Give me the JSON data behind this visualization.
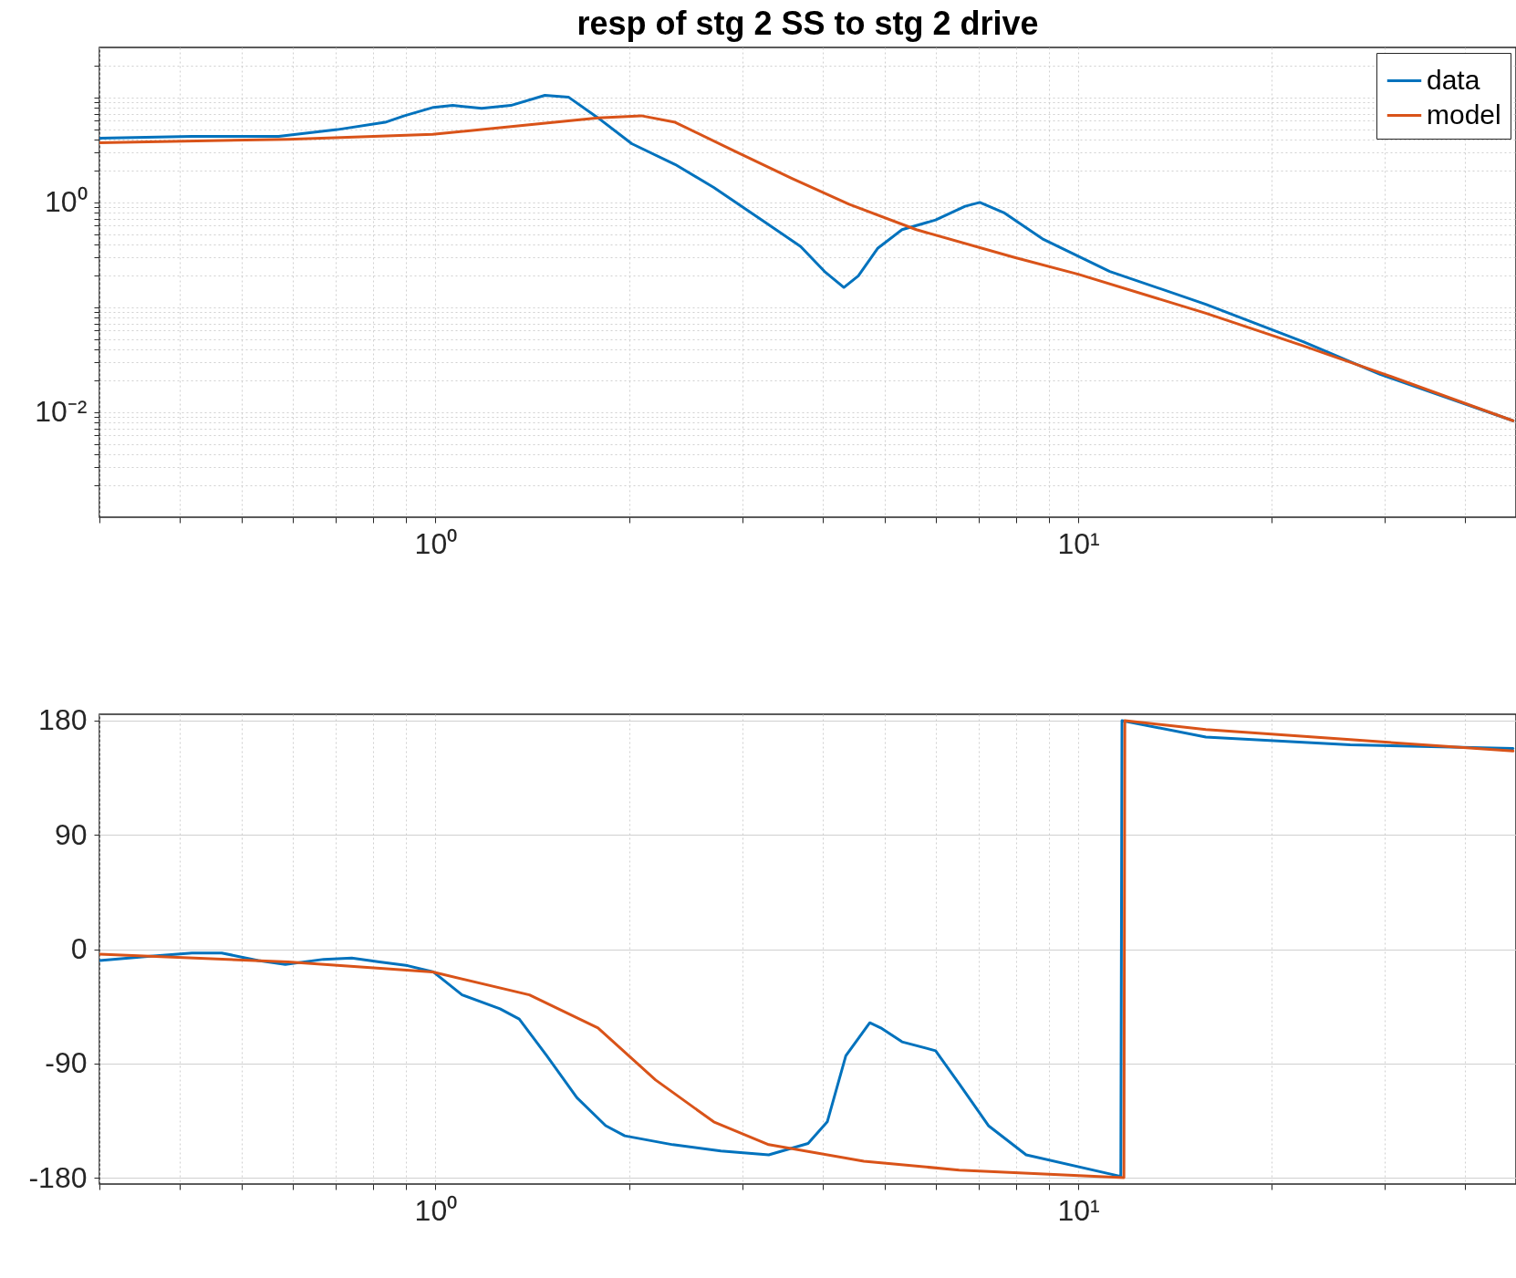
{
  "chart_data": [
    {
      "type": "line",
      "title": "resp of stg 2 SS to stg 2 drive",
      "log": "xy",
      "grid": true,
      "legend": "top right",
      "xlim": [
        0.3,
        48
      ],
      "ylim": [
        0.001,
        30
      ],
      "xticks": [
        {
          "value": 0.3,
          "label": null
        },
        {
          "value": 0.4,
          "label": null
        },
        {
          "value": 0.5,
          "label": null
        },
        {
          "value": 0.6,
          "label": null
        },
        {
          "value": 0.7,
          "label": null
        },
        {
          "value": 0.8,
          "label": null
        },
        {
          "value": 0.9,
          "label": null
        },
        {
          "value": 1,
          "label": "10⁰"
        },
        {
          "value": 2,
          "label": null
        },
        {
          "value": 3,
          "label": null
        },
        {
          "value": 4,
          "label": null
        },
        {
          "value": 5,
          "label": null
        },
        {
          "value": 6,
          "label": null
        },
        {
          "value": 7,
          "label": null
        },
        {
          "value": 8,
          "label": null
        },
        {
          "value": 9,
          "label": null
        },
        {
          "value": 10,
          "label": "10¹"
        },
        {
          "value": 20,
          "label": null
        },
        {
          "value": 30,
          "label": null
        },
        {
          "value": 40,
          "label": null
        }
      ],
      "yticks": [
        {
          "value": 0.002,
          "label": null
        },
        {
          "value": 0.003,
          "label": null
        },
        {
          "value": 0.004,
          "label": null
        },
        {
          "value": 0.005,
          "label": null
        },
        {
          "value": 0.006,
          "label": null
        },
        {
          "value": 0.007,
          "label": null
        },
        {
          "value": 0.008,
          "label": null
        },
        {
          "value": 0.009,
          "label": null
        },
        {
          "value": 0.01,
          "label": "10⁻²"
        },
        {
          "value": 0.02,
          "label": null
        },
        {
          "value": 0.03,
          "label": null
        },
        {
          "value": 0.04,
          "label": null
        },
        {
          "value": 0.05,
          "label": null
        },
        {
          "value": 0.06,
          "label": null
        },
        {
          "value": 0.07,
          "label": null
        },
        {
          "value": 0.08,
          "label": null
        },
        {
          "value": 0.09,
          "label": null
        },
        {
          "value": 0.1,
          "label": null
        },
        {
          "value": 0.2,
          "label": null
        },
        {
          "value": 0.3,
          "label": null
        },
        {
          "value": 0.4,
          "label": null
        },
        {
          "value": 0.5,
          "label": null
        },
        {
          "value": 0.6,
          "label": null
        },
        {
          "value": 0.7,
          "label": null
        },
        {
          "value": 0.8,
          "label": null
        },
        {
          "value": 0.9,
          "label": null
        },
        {
          "value": 1,
          "label": "10⁰"
        },
        {
          "value": 2,
          "label": null
        },
        {
          "value": 3,
          "label": null
        },
        {
          "value": 4,
          "label": null
        },
        {
          "value": 5,
          "label": null
        },
        {
          "value": 6,
          "label": null
        },
        {
          "value": 7,
          "label": null
        },
        {
          "value": 8,
          "label": null
        },
        {
          "value": 9,
          "label": null
        },
        {
          "value": 10,
          "label": null
        },
        {
          "value": 20,
          "label": null
        }
      ],
      "series": [
        {
          "name": "data",
          "color": "#0072bd",
          "x": [
            0.3,
            0.418,
            0.57,
            0.703,
            0.835,
            0.895,
            0.993,
            1.064,
            1.18,
            1.31,
            1.48,
            1.61,
            1.79,
            2.02,
            2.36,
            2.71,
            3.22,
            3.7,
            4.03,
            4.32,
            4.55,
            4.88,
            5.32,
            6.0,
            6.67,
            7.03,
            7.66,
            8.8,
            11.2,
            15.8,
            22.4,
            29.5,
            47.5
          ],
          "values": [
            4.1,
            4.27,
            4.27,
            4.94,
            5.8,
            6.7,
            8.06,
            8.4,
            7.9,
            8.4,
            10.5,
            10.1,
            6.4,
            3.63,
            2.3,
            1.39,
            0.68,
            0.38,
            0.22,
            0.155,
            0.2,
            0.367,
            0.55,
            0.68,
            0.92,
            1.0,
            0.8,
            0.45,
            0.22,
            0.107,
            0.047,
            0.023,
            0.0083
          ]
        },
        {
          "name": "model",
          "color": "#d95319",
          "x": [
            0.3,
            0.59,
            0.99,
            1.4,
            1.79,
            2.09,
            2.36,
            2.9,
            3.58,
            4.4,
            5.6,
            7.94,
            10,
            15.8,
            22.4,
            30,
            47.5
          ],
          "values": [
            3.7,
            4.0,
            4.46,
            5.5,
            6.4,
            6.7,
            5.8,
            3.15,
            1.7,
            0.96,
            0.55,
            0.3,
            0.207,
            0.088,
            0.043,
            0.023,
            0.0083
          ]
        }
      ]
    },
    {
      "type": "line",
      "log": "x",
      "grid": true,
      "xlim": [
        0.3,
        48
      ],
      "ylim": [
        -185,
        185
      ],
      "xticks": [
        {
          "value": 0.3,
          "label": null
        },
        {
          "value": 0.4,
          "label": null
        },
        {
          "value": 0.5,
          "label": null
        },
        {
          "value": 0.6,
          "label": null
        },
        {
          "value": 0.7,
          "label": null
        },
        {
          "value": 0.8,
          "label": null
        },
        {
          "value": 0.9,
          "label": null
        },
        {
          "value": 1,
          "label": "10⁰"
        },
        {
          "value": 2,
          "label": null
        },
        {
          "value": 3,
          "label": null
        },
        {
          "value": 4,
          "label": null
        },
        {
          "value": 5,
          "label": null
        },
        {
          "value": 6,
          "label": null
        },
        {
          "value": 7,
          "label": null
        },
        {
          "value": 8,
          "label": null
        },
        {
          "value": 9,
          "label": null
        },
        {
          "value": 10,
          "label": "10¹"
        },
        {
          "value": 20,
          "label": null
        },
        {
          "value": 30,
          "label": null
        },
        {
          "value": 40,
          "label": null
        }
      ],
      "yticks": [
        -180,
        -90,
        0,
        90,
        180
      ],
      "series": [
        {
          "color": "#0072bd",
          "x": [
            0.3,
            0.353,
            0.418,
            0.465,
            0.53,
            0.584,
            0.67,
            0.741,
            0.818,
            0.905,
            0.993,
            1.1,
            1.26,
            1.35,
            1.49,
            1.66,
            1.84,
            1.97,
            2.34,
            2.78,
            3.3,
            3.8,
            4.07,
            4.35,
            4.74,
            4.93,
            5.32,
            6.0,
            6.53,
            7.25,
            8.3,
            11.65,
            11.7,
            15.8,
            26.5,
            47.5
          ],
          "values": [
            -9,
            -6,
            -3,
            -3,
            -9,
            -12,
            -8,
            -7,
            -10,
            -13,
            -18,
            -36,
            -47,
            -55,
            -84,
            -117,
            -139,
            -147,
            -154,
            -159,
            -162,
            -153,
            -136,
            -84,
            -58,
            -62,
            -73,
            -80,
            -106,
            -139,
            -162,
            -179,
            180,
            167,
            161,
            158
          ]
        },
        {
          "color": "#d95319",
          "x": [
            0.3,
            0.59,
            0.99,
            1.4,
            1.79,
            2.2,
            2.71,
            3.3,
            4.64,
            6.53,
            11.78,
            11.82,
            15.8,
            26.5,
            47.5
          ],
          "values": [
            -4,
            -10,
            -18,
            -36,
            -62,
            -103,
            -136,
            -154,
            -167,
            -174,
            -180,
            180,
            173,
            165,
            156
          ]
        }
      ]
    }
  ]
}
